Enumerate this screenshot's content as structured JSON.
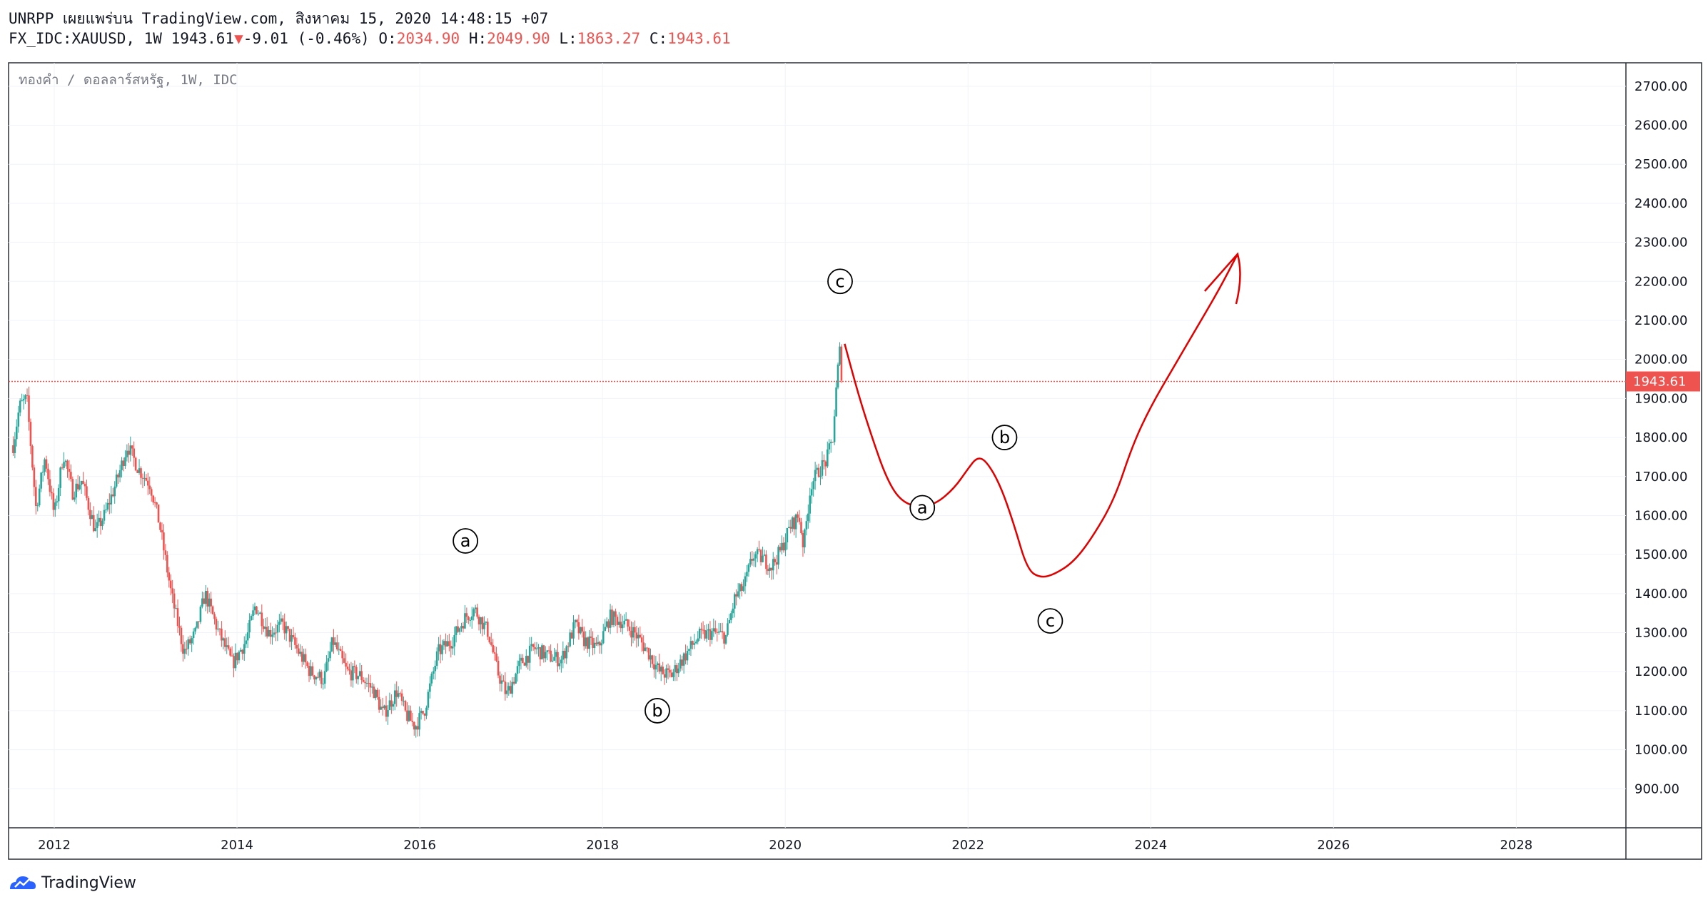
{
  "header": {
    "line1": "UNRPP เผยแพร่บน TradingView.com, สิงหาคม 15, 2020 14:48:15 +07",
    "symbol": "FX_IDC:XAUUSD, 1W 1943.61",
    "change_arrow": "▼",
    "change": "-9.01 (-0.46%)",
    "o_label": "O:",
    "o_value": "2034.90",
    "h_label": "H:",
    "h_value": "2049.90",
    "l_label": "L:",
    "l_value": "1863.27",
    "c_label": "C:",
    "c_value": "1943.61"
  },
  "footer": {
    "brand": "TradingView"
  },
  "colors": {
    "up": "#26a69a",
    "down": "#ef5350",
    "drawing": "#e00000",
    "grid": "#f0f3fa",
    "price_line": "#ef5350"
  },
  "chart_data": {
    "type": "candlestick",
    "legend": "ทองคำ / ดอลลาร์สหรัฐ, 1W, IDC",
    "last_price": 1943.61,
    "last_price_label": "1943.61",
    "ylim": [
      800,
      2760
    ],
    "xlim": [
      2011.5,
      2029.2
    ],
    "y_ticks": [
      "900.00",
      "1000.00",
      "1100.00",
      "1200.00",
      "1300.00",
      "1400.00",
      "1500.00",
      "1600.00",
      "1700.00",
      "1800.00",
      "1900.00",
      "2000.00",
      "2100.00",
      "2200.00",
      "2300.00",
      "2400.00",
      "2500.00",
      "2600.00",
      "2700.00"
    ],
    "x_ticks": [
      "2012",
      "2014",
      "2016",
      "2018",
      "2020",
      "2022",
      "2024",
      "2026",
      "2028"
    ],
    "price_path": [
      [
        2011.55,
        1780
      ],
      [
        2011.62,
        1880
      ],
      [
        2011.7,
        1900
      ],
      [
        2011.8,
        1620
      ],
      [
        2011.9,
        1750
      ],
      [
        2012.0,
        1600
      ],
      [
        2012.1,
        1760
      ],
      [
        2012.2,
        1660
      ],
      [
        2012.3,
        1690
      ],
      [
        2012.45,
        1560
      ],
      [
        2012.55,
        1600
      ],
      [
        2012.7,
        1700
      ],
      [
        2012.8,
        1780
      ],
      [
        2012.92,
        1720
      ],
      [
        2013.05,
        1680
      ],
      [
        2013.15,
        1580
      ],
      [
        2013.28,
        1400
      ],
      [
        2013.42,
        1250
      ],
      [
        2013.55,
        1300
      ],
      [
        2013.65,
        1400
      ],
      [
        2013.8,
        1300
      ],
      [
        2013.95,
        1220
      ],
      [
        2014.1,
        1280
      ],
      [
        2014.2,
        1370
      ],
      [
        2014.35,
        1300
      ],
      [
        2014.5,
        1320
      ],
      [
        2014.65,
        1260
      ],
      [
        2014.8,
        1200
      ],
      [
        2014.95,
        1180
      ],
      [
        2015.05,
        1280
      ],
      [
        2015.2,
        1200
      ],
      [
        2015.35,
        1190
      ],
      [
        2015.5,
        1150
      ],
      [
        2015.6,
        1090
      ],
      [
        2015.75,
        1150
      ],
      [
        2015.85,
        1090
      ],
      [
        2015.95,
        1060
      ],
      [
        2016.05,
        1100
      ],
      [
        2016.2,
        1250
      ],
      [
        2016.35,
        1280
      ],
      [
        2016.5,
        1340
      ],
      [
        2016.6,
        1360
      ],
      [
        2016.75,
        1300
      ],
      [
        2016.85,
        1200
      ],
      [
        2016.95,
        1140
      ],
      [
        2017.1,
        1220
      ],
      [
        2017.25,
        1260
      ],
      [
        2017.4,
        1240
      ],
      [
        2017.55,
        1230
      ],
      [
        2017.7,
        1320
      ],
      [
        2017.8,
        1280
      ],
      [
        2017.95,
        1260
      ],
      [
        2018.08,
        1340
      ],
      [
        2018.2,
        1330
      ],
      [
        2018.35,
        1300
      ],
      [
        2018.5,
        1250
      ],
      [
        2018.62,
        1200
      ],
      [
        2018.75,
        1190
      ],
      [
        2018.9,
        1240
      ],
      [
        2019.05,
        1290
      ],
      [
        2019.2,
        1300
      ],
      [
        2019.35,
        1290
      ],
      [
        2019.45,
        1390
      ],
      [
        2019.55,
        1420
      ],
      [
        2019.65,
        1500
      ],
      [
        2019.75,
        1490
      ],
      [
        2019.85,
        1470
      ],
      [
        2019.95,
        1510
      ],
      [
        2020.05,
        1570
      ],
      [
        2020.15,
        1600
      ],
      [
        2020.2,
        1520
      ],
      [
        2020.28,
        1680
      ],
      [
        2020.38,
        1720
      ],
      [
        2020.45,
        1740
      ],
      [
        2020.52,
        1800
      ],
      [
        2020.57,
        1960
      ],
      [
        2020.6,
        2030
      ],
      [
        2020.62,
        1943
      ]
    ],
    "projection": [
      [
        2020.65,
        2040
      ],
      [
        2020.8,
        1910
      ],
      [
        2020.95,
        1800
      ],
      [
        2021.1,
        1700
      ],
      [
        2021.25,
        1640
      ],
      [
        2021.45,
        1620
      ],
      [
        2021.65,
        1630
      ],
      [
        2021.85,
        1670
      ],
      [
        2022.0,
        1720
      ],
      [
        2022.1,
        1750
      ],
      [
        2022.2,
        1740
      ],
      [
        2022.35,
        1680
      ],
      [
        2022.5,
        1580
      ],
      [
        2022.65,
        1460
      ],
      [
        2022.8,
        1440
      ],
      [
        2022.95,
        1450
      ],
      [
        2023.15,
        1480
      ],
      [
        2023.35,
        1540
      ],
      [
        2023.6,
        1640
      ],
      [
        2023.8,
        1780
      ],
      [
        2024.0,
        1880
      ],
      [
        2024.25,
        1980
      ],
      [
        2024.5,
        2080
      ],
      [
        2024.75,
        2180
      ],
      [
        2024.95,
        2270
      ]
    ],
    "annotations": [
      {
        "label": "a",
        "x": 2016.5,
        "y": 1535
      },
      {
        "label": "b",
        "x": 2018.6,
        "y": 1100
      },
      {
        "label": "c",
        "x": 2020.6,
        "y": 2200
      },
      {
        "label": "a",
        "x": 2021.5,
        "y": 1620
      },
      {
        "label": "b",
        "x": 2022.4,
        "y": 1800
      },
      {
        "label": "c",
        "x": 2022.9,
        "y": 1330
      }
    ]
  }
}
